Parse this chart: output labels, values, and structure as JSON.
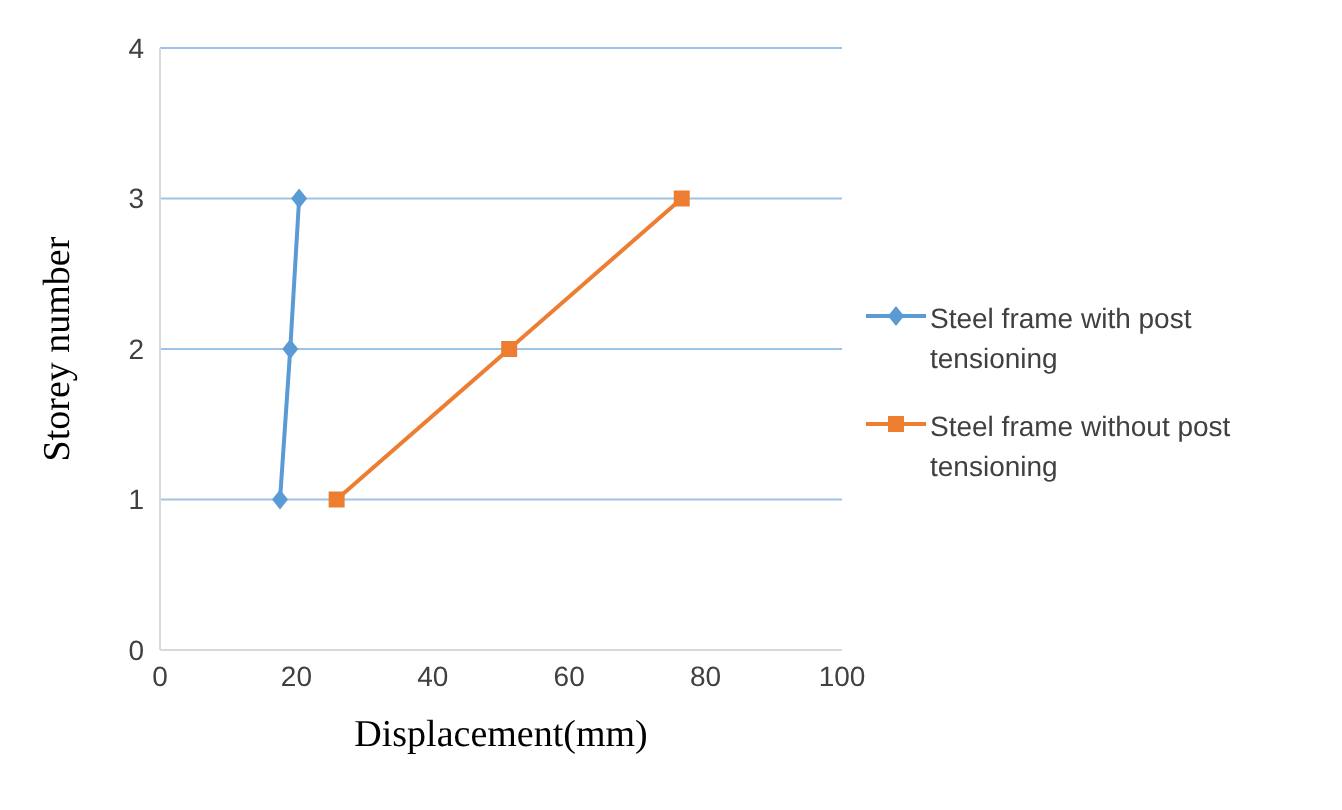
{
  "chart_data": {
    "type": "line",
    "xlabel": "Displacement(mm)",
    "ylabel": "Storey number",
    "xlim": [
      0,
      100
    ],
    "xticks": [
      0,
      20,
      40,
      60,
      80,
      100
    ],
    "ylim": [
      0,
      4
    ],
    "yticks": [
      0,
      1,
      2,
      3,
      4
    ],
    "grid": "y",
    "legend": "right",
    "series": [
      {
        "name": "Steel frame with post tensioning",
        "color": "#5b9bd5",
        "x": [
          17.6,
          19.1,
          20.4
        ],
        "values": [
          1,
          2,
          3
        ],
        "marker": "diamond"
      },
      {
        "name": "Steel frame without post tensioning",
        "color": "#ed7d31",
        "x": [
          25.9,
          51.2,
          76.5
        ],
        "values": [
          1,
          2,
          3
        ],
        "marker": "square"
      }
    ]
  }
}
